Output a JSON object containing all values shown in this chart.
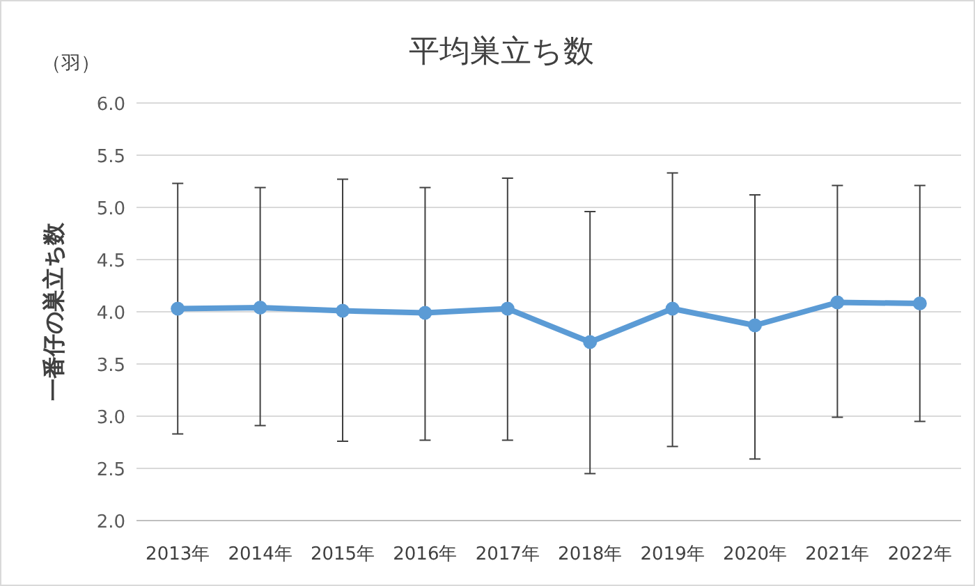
{
  "chart_data": {
    "type": "line",
    "title": "平均巣立ち数",
    "ylabel": "一番仔の巣立ち数",
    "annotations": [
      "（羽）"
    ],
    "categories": [
      "2013年",
      "2014年",
      "2015年",
      "2016年",
      "2017年",
      "2018年",
      "2019年",
      "2020年",
      "2021年",
      "2022年"
    ],
    "series": [
      {
        "color": "#5b9bd5",
        "values": [
          4.03,
          4.04,
          4.01,
          3.99,
          4.03,
          3.71,
          4.03,
          3.87,
          4.09,
          4.08
        ],
        "errors": [
          [
            2.83,
            5.23
          ],
          [
            2.91,
            5.19
          ],
          [
            2.76,
            5.27
          ],
          [
            2.77,
            5.19
          ],
          [
            2.77,
            5.28
          ],
          [
            2.45,
            4.96
          ],
          [
            2.71,
            5.33
          ],
          [
            2.59,
            5.12
          ],
          [
            2.99,
            5.21
          ],
          [
            2.95,
            5.21
          ]
        ]
      }
    ],
    "ylim": [
      2.0,
      6.0
    ],
    "yticks": [
      {
        "value": 2.0,
        "label": "2.0"
      },
      {
        "value": 2.5,
        "label": "2.5"
      },
      {
        "value": 3.0,
        "label": "3.0"
      },
      {
        "value": 3.5,
        "label": "3.5"
      },
      {
        "value": 4.0,
        "label": "4.0"
      },
      {
        "value": 4.5,
        "label": "4.5"
      },
      {
        "value": 5.0,
        "label": "5.0"
      },
      {
        "value": 5.5,
        "label": "5.5"
      },
      {
        "value": 6.0,
        "label": "6.0"
      }
    ],
    "grid": "y",
    "marker": "circle",
    "line_style": "solid"
  }
}
